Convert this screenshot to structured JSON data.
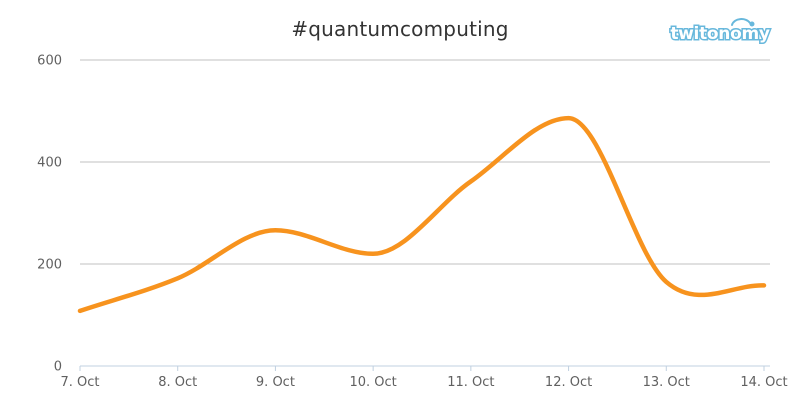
{
  "brand": {
    "logo_text": "twitonomy",
    "logo_color": "#68b8dc"
  },
  "chart_data": {
    "type": "line",
    "title": "#quantumcomputing",
    "xlabel": "",
    "ylabel": "",
    "x": [
      "7. Oct",
      "8. Oct",
      "9. Oct",
      "10. Oct",
      "11. Oct",
      "12. Oct",
      "13. Oct",
      "14. Oct"
    ],
    "y_ticks": [
      0,
      200,
      400,
      600
    ],
    "ylim": [
      0,
      600
    ],
    "grid": true,
    "legend": "none",
    "series": [
      {
        "color": "#f7931e",
        "values": [
          108,
          172,
          266,
          220,
          362,
          486,
          165,
          158
        ]
      }
    ]
  }
}
